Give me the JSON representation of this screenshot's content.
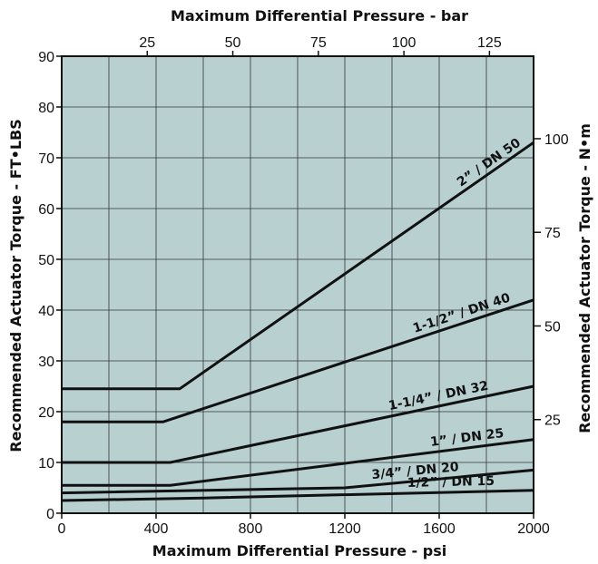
{
  "chart_data": {
    "type": "line",
    "xlabel": "Maximum Differential Pressure - psi",
    "x2label": "Maximum Differential Pressure - bar",
    "ylabel": "Recommended Actuator Torque - FT•LBS",
    "y2label": "Recommended Actuator Torque - N•m",
    "xlim": [
      0,
      2000
    ],
    "ylim": [
      0,
      90
    ],
    "x_ticks": [
      0,
      400,
      800,
      1200,
      1600,
      2000
    ],
    "x_tick_labels": [
      "0",
      "400",
      "800",
      "1200",
      "1600",
      "2000"
    ],
    "y_ticks": [
      0,
      10,
      20,
      30,
      40,
      50,
      60,
      70,
      80,
      90
    ],
    "y_tick_labels": [
      "0",
      "10",
      "20",
      "30",
      "40",
      "50",
      "60",
      "70",
      "80",
      "90"
    ],
    "x2_ticks": [
      25,
      50,
      75,
      100,
      125
    ],
    "x2_tick_labels": [
      "25",
      "50",
      "75",
      "100",
      "125"
    ],
    "y2_ticks": [
      25,
      50,
      75,
      100
    ],
    "y2_tick_labels": [
      "25",
      "50",
      "75",
      "100"
    ],
    "grid": true,
    "background_color": "#b9d0d1",
    "line_color": "#111111",
    "series": [
      {
        "name": "2” / DN 50",
        "x": [
          0,
          500,
          2000
        ],
        "y": [
          24.5,
          24.5,
          73
        ]
      },
      {
        "name": "1-1/2” / DN 40",
        "x": [
          0,
          430,
          2000
        ],
        "y": [
          18,
          18,
          42
        ]
      },
      {
        "name": "1-1/4” / DN 32",
        "x": [
          0,
          460,
          2000
        ],
        "y": [
          10,
          10,
          25
        ]
      },
      {
        "name": "1” / DN 25",
        "x": [
          0,
          460,
          2000
        ],
        "y": [
          5.5,
          5.5,
          14.5
        ]
      },
      {
        "name": "3/4” / DN 20",
        "x": [
          0,
          1200,
          2000
        ],
        "y": [
          4,
          5,
          8.5
        ]
      },
      {
        "name": "1/2” / DN 15",
        "x": [
          0,
          600,
          2000
        ],
        "y": [
          2.5,
          3,
          4.5
        ]
      }
    ]
  }
}
